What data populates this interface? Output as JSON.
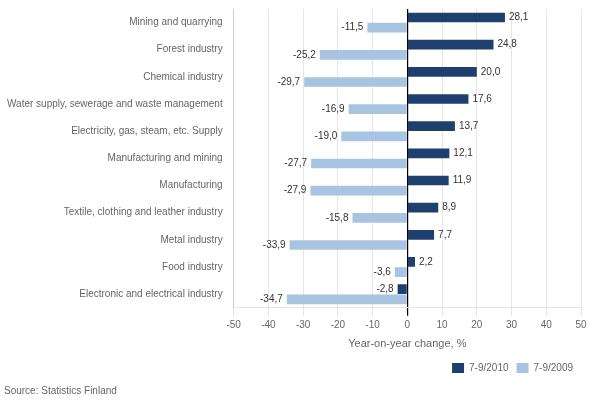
{
  "chart_data": {
    "type": "bar",
    "orientation": "horizontal",
    "categories": [
      "Mining and quarrying",
      "Forest industry",
      "Chemical industry",
      "Water supply, sewerage and waste management",
      "Electricity, gas, steam, etc. Supply",
      "Manufacturing and mining",
      "Manufacturing",
      "Textile, clothing and leather industry",
      "Metal industry",
      "Food industry",
      "Electronic and electrical industry"
    ],
    "series": [
      {
        "name": "7-9/2010",
        "color": "#1F3F6E",
        "values": [
          28.1,
          24.8,
          20.0,
          17.6,
          13.7,
          12.1,
          11.9,
          8.9,
          7.7,
          2.2,
          -2.8
        ],
        "value_labels": [
          "28,1",
          "24,8",
          "20,0",
          "17,6",
          "13,7",
          "12,1",
          "11,9",
          "8,9",
          "7,7",
          "2,2",
          "-2,8"
        ]
      },
      {
        "name": "7-9/2009",
        "color": "#A8C4E0",
        "values": [
          -11.5,
          -25.2,
          -29.7,
          -16.9,
          -19.0,
          -27.7,
          -27.9,
          -15.8,
          -33.9,
          -3.6,
          -34.7
        ],
        "value_labels": [
          "-11,5",
          "-25,2",
          "-29,7",
          "-16,9",
          "-19,0",
          "-27,7",
          "-27,9",
          "-15,8",
          "-33,9",
          "-3,6",
          "-34,7"
        ]
      }
    ],
    "xlabel": "Year-on-year change, %",
    "xlim": [
      -50,
      50
    ],
    "xticks": [
      -50,
      -40,
      -30,
      -20,
      -10,
      0,
      10,
      20,
      30,
      40,
      50
    ],
    "grid": true,
    "legend": "lower right",
    "data_labels": true,
    "source": "Source: Statistics Finland"
  }
}
